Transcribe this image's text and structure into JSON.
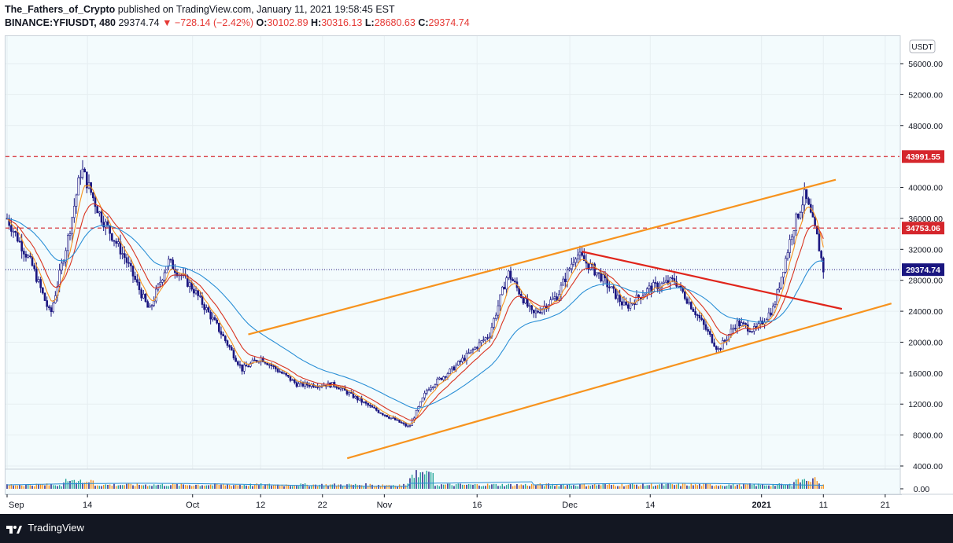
{
  "header": {
    "publisher": "The_Fathers_of_Crypto",
    "published_text": "published on TradingView.com, January 11, 2021 19:58:45 EST",
    "symbol": "BINANCE:YFIUSDT, 480",
    "last": "29374.74",
    "change": "−728.14 (−2.42%)",
    "o_label": "O:",
    "o": "30102.89",
    "h_label": "H:",
    "h": "30316.13",
    "l_label": "L:",
    "l": "28680.63",
    "c_label": "C:",
    "c": "29374.74"
  },
  "footer": {
    "brand": "TradingView"
  },
  "colors": {
    "channel": "#f7931e",
    "trendline": "#e0251b",
    "candle": "#1a1680",
    "ma_fast": "#f7931e",
    "ma_mid": "#d9331f",
    "ma_slow": "#2a8fd6",
    "level": "#d5262c",
    "current": "#1a1680"
  },
  "chart_data": {
    "type": "candlestick",
    "currency_badge": "USDT",
    "y_ticks": [
      "56000.00",
      "52000.00",
      "48000.00",
      "40000.00",
      "36000.00",
      "32000.00",
      "28000.00",
      "24000.00",
      "20000.00",
      "16000.00",
      "12000.00",
      "8000.00",
      "4000.00"
    ],
    "ylim": [
      3000,
      57500
    ],
    "x_ticks": [
      "Sep",
      "14",
      "Oct",
      "12",
      "22",
      "Nov",
      "16",
      "Dec",
      "14",
      "2021",
      "11",
      "21"
    ],
    "horizontal_levels": [
      {
        "value": 43991.55,
        "label": "43991.55",
        "style": "dashed"
      },
      {
        "value": 34753.06,
        "label": "34753.06",
        "style": "dashed"
      }
    ],
    "current_price": {
      "value": 29374.74,
      "label": "29374.74"
    },
    "volume_label": "0.00",
    "approx_close_series": [
      [
        "Sep 1",
        36000
      ],
      [
        "Sep 5",
        30000
      ],
      [
        "Sep 8",
        23500
      ],
      [
        "Sep 11",
        34000
      ],
      [
        "Sep 13",
        42500
      ],
      [
        "Sep 16",
        36500
      ],
      [
        "Sep 20",
        31000
      ],
      [
        "Sep 24",
        24000
      ],
      [
        "Sep 27",
        30500
      ],
      [
        "Oct 1",
        27000
      ],
      [
        "Oct 5",
        22000
      ],
      [
        "Oct 9",
        16500
      ],
      [
        "Oct 12",
        18000
      ],
      [
        "Oct 18",
        14500
      ],
      [
        "Oct 24",
        14500
      ],
      [
        "Oct 30",
        11500
      ],
      [
        "Nov 5",
        9000
      ],
      [
        "Nov 8",
        14000
      ],
      [
        "Nov 12",
        16500
      ],
      [
        "Nov 18",
        21000
      ],
      [
        "Nov 21",
        29000
      ],
      [
        "Nov 25",
        23500
      ],
      [
        "Nov 29",
        26000
      ],
      [
        "Dec 2",
        31500
      ],
      [
        "Dec 6",
        28500
      ],
      [
        "Dec 10",
        24500
      ],
      [
        "Dec 14",
        27000
      ],
      [
        "Dec 18",
        28000
      ],
      [
        "Dec 22",
        23000
      ],
      [
        "Dec 25",
        19000
      ],
      [
        "Dec 28",
        22500
      ],
      [
        "Dec 31",
        21500
      ],
      [
        "Jan 3",
        24500
      ],
      [
        "Jan 6",
        34500
      ],
      [
        "Jan 8",
        39000
      ],
      [
        "Jan 10",
        33500
      ],
      [
        "Jan 11",
        29374.74
      ]
    ],
    "annotations": [
      {
        "name": "upper-channel",
        "from": [
          "Oct 10",
          21000
        ],
        "to": [
          "Jan 13",
          41000
        ]
      },
      {
        "name": "lower-channel",
        "from": [
          "Oct 26",
          5000
        ],
        "to": [
          "Jan 22",
          25000
        ]
      },
      {
        "name": "descending-trendline",
        "from": [
          "Dec 3",
          31700
        ],
        "to": [
          "Jan 14",
          24300
        ]
      }
    ]
  }
}
